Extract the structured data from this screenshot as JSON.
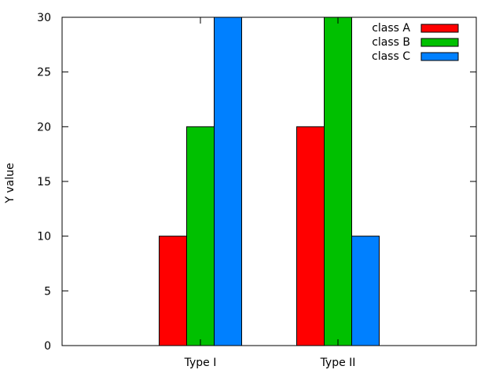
{
  "chart_data": {
    "type": "bar",
    "categories": [
      "Type I",
      "Type II"
    ],
    "series": [
      {
        "name": "class A",
        "color": "#ff0000",
        "values": [
          10,
          20
        ]
      },
      {
        "name": "class B",
        "color": "#00c000",
        "values": [
          20,
          30
        ]
      },
      {
        "name": "class C",
        "color": "#0080ff",
        "values": [
          30,
          10
        ]
      }
    ],
    "title": "",
    "xlabel": "",
    "ylabel": "Y value",
    "ylim": [
      0,
      30
    ],
    "yticks": [
      "0",
      "5",
      "10",
      "15",
      "20",
      "25",
      "30"
    ],
    "legend_position": "top-right",
    "grid": false
  }
}
